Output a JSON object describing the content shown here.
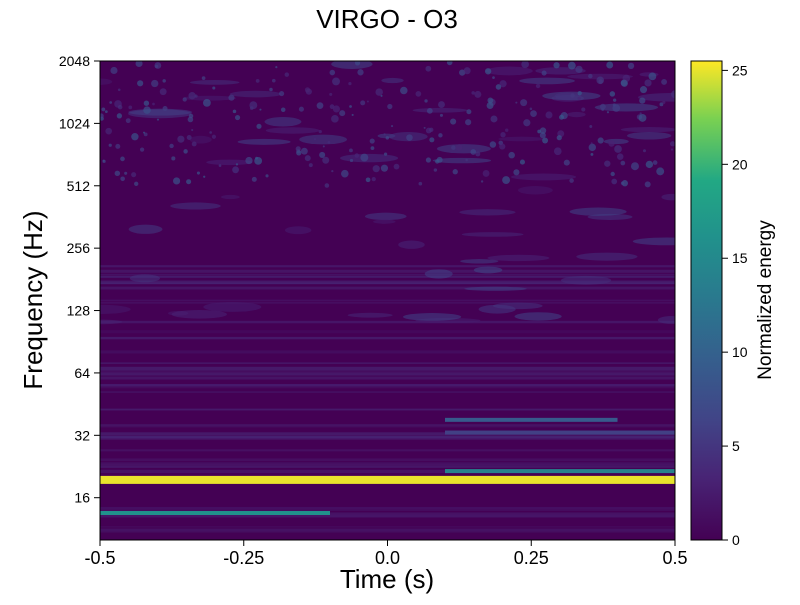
{
  "chart_data": {
    "type": "heatmap",
    "title": "VIRGO - O3",
    "xlabel": "Time (s)",
    "ylabel": "Frequency (Hz)",
    "xlim": [
      -0.5,
      0.5
    ],
    "ylim": [
      10,
      2048
    ],
    "yscale": "log2",
    "xticks": [
      "-0.5",
      "-0.25",
      "0.0",
      "0.25",
      "0.5"
    ],
    "xtick_values": [
      -0.5,
      -0.25,
      0.0,
      0.25,
      0.5
    ],
    "yticks": [
      "16",
      "32",
      "64",
      "128",
      "256",
      "512",
      "1024",
      "2048"
    ],
    "ytick_values": [
      16,
      32,
      64,
      128,
      256,
      512,
      1024,
      2048
    ],
    "colormap": "viridis",
    "colorbar": {
      "label": "Normalized energy",
      "range": [
        0,
        25.5
      ],
      "ticks": [
        "0",
        "5",
        "10",
        "15",
        "20",
        "25"
      ],
      "tick_values": [
        0,
        5,
        10,
        15,
        20,
        25
      ]
    },
    "features": [
      {
        "frequency_hz": 19.5,
        "energy": 25,
        "time_range": [
          -0.5,
          0.5
        ]
      },
      {
        "frequency_hz": 21.5,
        "energy": 14,
        "time_range": [
          0.1,
          0.5
        ]
      },
      {
        "frequency_hz": 13.5,
        "energy": 16,
        "time_range": [
          -0.5,
          -0.1
        ]
      },
      {
        "frequency_hz": 38,
        "energy": 9,
        "time_range": [
          0.1,
          0.4
        ]
      },
      {
        "frequency_hz": 33,
        "energy": 6,
        "time_range": [
          0.1,
          0.5
        ]
      }
    ],
    "grid": false
  }
}
